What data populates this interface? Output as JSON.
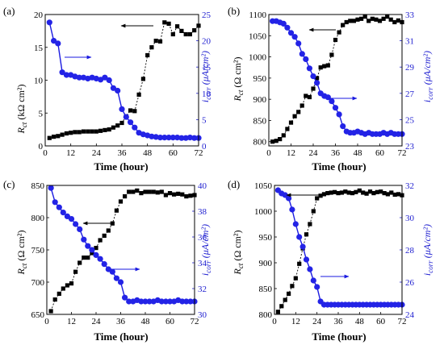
{
  "chart_data": [
    {
      "panel": "(a)",
      "type": "line",
      "xlabel": "Time (hour)",
      "xlim": [
        0,
        72
      ],
      "xticks": [
        0,
        12,
        24,
        36,
        48,
        60,
        72
      ],
      "left_axis": {
        "label_main": "R",
        "label_sub": "ct",
        "label_units": " (kΩ cm²)",
        "ylim": [
          0,
          20
        ],
        "yticks": [
          0,
          5,
          10,
          15,
          20
        ]
      },
      "right_axis": {
        "label_main": "i",
        "label_sub": "corr",
        "label_units": " (μA/cm²)",
        "ylim": [
          0,
          25
        ],
        "yticks": [
          0,
          5,
          10,
          15,
          20,
          25
        ]
      },
      "series": [
        {
          "axis": "left",
          "x": [
            2,
            4,
            6,
            8,
            10,
            12,
            14,
            16,
            18,
            20,
            22,
            24,
            26,
            28,
            30,
            32,
            34,
            36,
            38,
            40,
            42,
            44,
            46,
            48,
            50,
            52,
            54,
            56,
            58,
            60,
            62,
            64,
            66,
            68,
            70,
            72
          ],
          "values": [
            1.2,
            1.4,
            1.5,
            1.7,
            1.9,
            2.0,
            2.1,
            2.1,
            2.2,
            2.2,
            2.2,
            2.2,
            2.3,
            2.4,
            2.5,
            2.8,
            3.1,
            3.5,
            4.5,
            5.4,
            5.3,
            7.8,
            10.2,
            13.8,
            15.0,
            16.0,
            15.9,
            18.8,
            18.6,
            17.0,
            18.2,
            17.5,
            17.0,
            17.0,
            17.6,
            18.3
          ]
        },
        {
          "axis": "right",
          "x": [
            2,
            4,
            6,
            8,
            10,
            12,
            14,
            16,
            18,
            20,
            22,
            24,
            26,
            28,
            30,
            32,
            34,
            36,
            38,
            40,
            42,
            44,
            46,
            48,
            50,
            52,
            54,
            56,
            58,
            60,
            62,
            64,
            66,
            68,
            70,
            72
          ],
          "values": [
            23.5,
            20.0,
            19.5,
            14.0,
            13.5,
            13.5,
            13.2,
            13.0,
            13.0,
            12.8,
            13.0,
            12.8,
            12.6,
            13.0,
            12.5,
            11.0,
            10.5,
            7.0,
            5.5,
            4.5,
            3.5,
            2.5,
            2.2,
            2.0,
            1.8,
            1.7,
            1.6,
            1.6,
            1.6,
            1.6,
            1.6,
            1.5,
            1.5,
            1.6,
            1.5,
            1.5
          ]
        }
      ]
    },
    {
      "panel": "(b)",
      "type": "line",
      "xlabel": "Time (hour)",
      "xlim": [
        0,
        72
      ],
      "xticks": [
        0,
        12,
        24,
        36,
        48,
        60,
        72
      ],
      "left_axis": {
        "label_main": "R",
        "label_sub": "ct",
        "label_units": " (Ω cm²)",
        "ylim": [
          790,
          1100
        ],
        "yticks": [
          800,
          850,
          900,
          950,
          1000,
          1050,
          1100
        ]
      },
      "right_axis": {
        "label_main": "i",
        "label_sub": "corr",
        "label_units": " (μA/cm²)",
        "ylim": [
          23,
          33
        ],
        "yticks": [
          23,
          25,
          27,
          29,
          31,
          33
        ]
      },
      "series": [
        {
          "axis": "left",
          "x": [
            2,
            4,
            6,
            8,
            10,
            12,
            14,
            16,
            18,
            20,
            22,
            24,
            26,
            28,
            30,
            32,
            34,
            36,
            38,
            40,
            42,
            44,
            46,
            48,
            50,
            52,
            54,
            56,
            58,
            60,
            62,
            64,
            66,
            68,
            70,
            72
          ],
          "values": [
            800,
            802,
            806,
            815,
            830,
            845,
            860,
            870,
            885,
            908,
            905,
            925,
            950,
            975,
            978,
            980,
            1005,
            1040,
            1058,
            1075,
            1082,
            1085,
            1085,
            1088,
            1090,
            1095,
            1085,
            1090,
            1088,
            1085,
            1090,
            1095,
            1088,
            1082,
            1086,
            1082
          ]
        },
        {
          "axis": "right",
          "x": [
            2,
            4,
            6,
            8,
            10,
            12,
            14,
            16,
            18,
            20,
            22,
            24,
            26,
            28,
            30,
            32,
            34,
            36,
            38,
            40,
            42,
            44,
            46,
            48,
            50,
            52,
            54,
            56,
            58,
            60,
            62,
            64,
            66,
            68,
            70,
            72
          ],
          "values": [
            32.5,
            32.5,
            32.4,
            32.3,
            32.0,
            31.6,
            31.3,
            30.8,
            30.0,
            29.6,
            28.9,
            28.3,
            27.8,
            27.0,
            26.8,
            26.7,
            26.4,
            25.9,
            25.4,
            24.5,
            24.1,
            24.0,
            24.0,
            24.1,
            24.0,
            23.9,
            24.0,
            23.9,
            23.9,
            23.9,
            24.0,
            23.9,
            24.0,
            23.9,
            23.9,
            23.9
          ]
        }
      ]
    },
    {
      "panel": "(c)",
      "type": "line",
      "xlabel": "Time (hour)",
      "xlim": [
        0,
        72
      ],
      "xticks": [
        0,
        12,
        24,
        36,
        48,
        60,
        72
      ],
      "left_axis": {
        "label_main": "R",
        "label_sub": "ct",
        "label_units": " (Ω cm²)",
        "ylim": [
          650,
          850
        ],
        "yticks": [
          650,
          700,
          750,
          800,
          850
        ]
      },
      "right_axis": {
        "label_main": "i",
        "label_sub": "corr",
        "label_units": " (μA/cm²)",
        "ylim": [
          30,
          40
        ],
        "yticks": [
          30,
          32,
          34,
          36,
          38,
          40
        ]
      },
      "series": [
        {
          "axis": "left",
          "x": [
            2,
            4,
            6,
            8,
            10,
            12,
            14,
            16,
            18,
            20,
            22,
            24,
            26,
            28,
            30,
            32,
            34,
            36,
            38,
            40,
            42,
            44,
            46,
            48,
            50,
            52,
            54,
            56,
            58,
            60,
            62,
            64,
            66,
            68,
            70,
            72
          ],
          "values": [
            655,
            673,
            682,
            690,
            695,
            698,
            716,
            730,
            738,
            738,
            745,
            753,
            765,
            772,
            780,
            791,
            811,
            825,
            833,
            840,
            840,
            842,
            838,
            840,
            840,
            840,
            839,
            840,
            835,
            838,
            836,
            837,
            836,
            833,
            834,
            835
          ]
        },
        {
          "axis": "right",
          "x": [
            2,
            4,
            6,
            8,
            10,
            12,
            14,
            16,
            18,
            20,
            22,
            24,
            26,
            28,
            30,
            32,
            34,
            36,
            38,
            40,
            42,
            44,
            46,
            48,
            50,
            52,
            54,
            56,
            58,
            60,
            62,
            64,
            66,
            68,
            70,
            72
          ],
          "values": [
            39.8,
            38.7,
            38.3,
            37.9,
            37.6,
            37.4,
            37.0,
            36.6,
            35.8,
            35.3,
            35.0,
            34.6,
            34.3,
            33.9,
            33.5,
            33.3,
            32.8,
            32.5,
            31.3,
            31.0,
            31.0,
            31.1,
            31.0,
            31.0,
            31.0,
            31.0,
            31.1,
            31.0,
            31.0,
            31.0,
            31.0,
            31.1,
            31.0,
            31.0,
            31.0,
            31.0
          ]
        }
      ]
    },
    {
      "panel": "(d)",
      "type": "line",
      "xlabel": "Time (hour)",
      "xlim": [
        0,
        72
      ],
      "xticks": [
        0,
        12,
        24,
        36,
        48,
        60,
        72
      ],
      "left_axis": {
        "label_main": "R",
        "label_sub": "ct",
        "label_units": " (Ω cm²)",
        "ylim": [
          800,
          1050
        ],
        "yticks": [
          800,
          850,
          900,
          950,
          1000,
          1050
        ]
      },
      "right_axis": {
        "label_main": "i",
        "label_sub": "corr",
        "label_units": " (μA/cm²)",
        "ylim": [
          24,
          32
        ],
        "yticks": [
          24,
          26,
          28,
          30,
          32
        ]
      },
      "series": [
        {
          "axis": "left",
          "x": [
            2,
            4,
            6,
            8,
            10,
            12,
            14,
            16,
            18,
            20,
            22,
            24,
            26,
            28,
            30,
            32,
            34,
            36,
            38,
            40,
            42,
            44,
            46,
            48,
            50,
            52,
            54,
            56,
            58,
            60,
            62,
            64,
            66,
            68,
            70,
            72
          ],
          "values": [
            805,
            816,
            828,
            840,
            855,
            870,
            898,
            928,
            955,
            975,
            1000,
            1025,
            1030,
            1033,
            1035,
            1036,
            1037,
            1035,
            1036,
            1038,
            1036,
            1035,
            1037,
            1040,
            1036,
            1034,
            1038,
            1035,
            1037,
            1038,
            1035,
            1033,
            1036,
            1032,
            1033,
            1031
          ]
        },
        {
          "axis": "right",
          "x": [
            2,
            4,
            6,
            8,
            10,
            12,
            14,
            16,
            18,
            20,
            22,
            24,
            26,
            28,
            30,
            32,
            34,
            36,
            38,
            40,
            42,
            44,
            46,
            48,
            50,
            52,
            54,
            56,
            58,
            60,
            62,
            64,
            66,
            68,
            70,
            72
          ],
          "values": [
            31.7,
            31.5,
            31.4,
            31.2,
            30.5,
            29.6,
            28.8,
            28.2,
            27.4,
            26.8,
            26.1,
            25.7,
            24.8,
            24.6,
            24.6,
            24.6,
            24.6,
            24.6,
            24.6,
            24.6,
            24.6,
            24.6,
            24.6,
            24.6,
            24.6,
            24.6,
            24.6,
            24.6,
            24.6,
            24.6,
            24.6,
            24.6,
            24.6,
            24.6,
            24.6,
            24.6
          ]
        }
      ]
    }
  ]
}
